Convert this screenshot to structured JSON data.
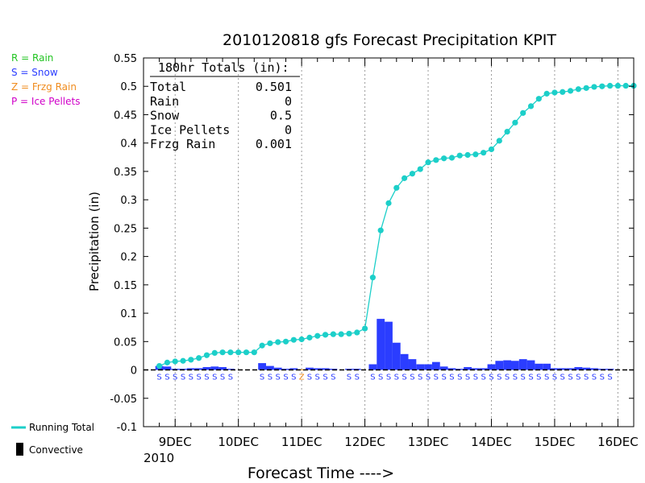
{
  "chart_data": {
    "type": "bar",
    "title": "2010120818 gfs Forecast Precipitation KPIT",
    "xlabel": "Forecast Time ---->",
    "ylabel": "Precipitation (in)",
    "ylim": [
      -0.1,
      0.55
    ],
    "yticks": [
      -0.1,
      -0.05,
      0,
      0.05,
      0.1,
      0.15,
      0.2,
      0.25,
      0.3,
      0.35,
      0.4,
      0.45,
      0.5,
      0.55
    ],
    "ytick_labels": [
      "-0.1",
      "-0.05",
      "0",
      "0.05",
      "0.1",
      "0.15",
      "0.2",
      "0.25",
      "0.3",
      "0.35",
      "0.4",
      "0.45",
      "0.5",
      "0.55"
    ],
    "xlim_hours": [
      -6,
      180
    ],
    "x_units": "hours after 2010-12-08 18Z",
    "x_ticks": [
      {
        "hour": 6,
        "label": "9DEC"
      },
      {
        "hour": 30,
        "label": "10DEC"
      },
      {
        "hour": 54,
        "label": "11DEC"
      },
      {
        "hour": 78,
        "label": "12DEC"
      },
      {
        "hour": 102,
        "label": "13DEC"
      },
      {
        "hour": 126,
        "label": "14DEC"
      },
      {
        "hour": 150,
        "label": "15DEC"
      },
      {
        "hour": 174,
        "label": "16DEC"
      }
    ],
    "x_sublabel": "2010",
    "grid": "vertical dotted at day boundaries",
    "bar_width_hours": 3,
    "interval_precip": [
      {
        "hour": 0,
        "value": 0.007,
        "type": "S",
        "color": "#2b3dff"
      },
      {
        "hour": 3,
        "value": 0.006,
        "type": "S",
        "color": "#2b3dff"
      },
      {
        "hour": 6,
        "value": 0.002,
        "type": "S",
        "color": "#2b3dff"
      },
      {
        "hour": 9,
        "value": 0.002,
        "type": "S",
        "color": "#2b3dff"
      },
      {
        "hour": 12,
        "value": 0.003,
        "type": "S",
        "color": "#2b3dff"
      },
      {
        "hour": 15,
        "value": 0.003,
        "type": "S",
        "color": "#2b3dff"
      },
      {
        "hour": 18,
        "value": 0.005,
        "type": "S",
        "color": "#2b3dff"
      },
      {
        "hour": 21,
        "value": 0.006,
        "type": "S",
        "color": "#2b3dff"
      },
      {
        "hour": 24,
        "value": 0.005,
        "type": "S",
        "color": "#2b3dff"
      },
      {
        "hour": 27,
        "value": 0.002,
        "type": "S",
        "color": "#2b3dff"
      },
      {
        "hour": 30,
        "value": 0.0,
        "type": "",
        "color": "#2b3dff"
      },
      {
        "hour": 33,
        "value": 0.0,
        "type": "",
        "color": "#2b3dff"
      },
      {
        "hour": 36,
        "value": 0.0,
        "type": "",
        "color": "#2b3dff"
      },
      {
        "hour": 39,
        "value": 0.012,
        "type": "S",
        "color": "#2b3dff"
      },
      {
        "hour": 42,
        "value": 0.007,
        "type": "S",
        "color": "#2b3dff"
      },
      {
        "hour": 45,
        "value": 0.004,
        "type": "S",
        "color": "#2b3dff"
      },
      {
        "hour": 48,
        "value": 0.002,
        "type": "S",
        "color": "#2b3dff"
      },
      {
        "hour": 51,
        "value": 0.003,
        "type": "S",
        "color": "#2b3dff"
      },
      {
        "hour": 54,
        "value": 0.001,
        "type": "Z",
        "color": "#f08c1e"
      },
      {
        "hour": 57,
        "value": 0.004,
        "type": "S",
        "color": "#2b3dff"
      },
      {
        "hour": 60,
        "value": 0.003,
        "type": "S",
        "color": "#2b3dff"
      },
      {
        "hour": 63,
        "value": 0.003,
        "type": "S",
        "color": "#2b3dff"
      },
      {
        "hour": 66,
        "value": 0.002,
        "type": "S",
        "color": "#2b3dff"
      },
      {
        "hour": 69,
        "value": 0.0,
        "type": "",
        "color": "#2b3dff"
      },
      {
        "hour": 72,
        "value": 0.002,
        "type": "S",
        "color": "#2b3dff"
      },
      {
        "hour": 75,
        "value": 0.002,
        "type": "S",
        "color": "#2b3dff"
      },
      {
        "hour": 78,
        "value": 0.0,
        "type": "",
        "color": "#2b3dff"
      },
      {
        "hour": 81,
        "value": 0.01,
        "type": "S",
        "color": "#2b3dff"
      },
      {
        "hour": 84,
        "value": 0.09,
        "type": "S",
        "color": "#2b3dff"
      },
      {
        "hour": 87,
        "value": 0.085,
        "type": "S",
        "color": "#2b3dff"
      },
      {
        "hour": 90,
        "value": 0.048,
        "type": "S",
        "color": "#2b3dff"
      },
      {
        "hour": 93,
        "value": 0.028,
        "type": "S",
        "color": "#2b3dff"
      },
      {
        "hour": 96,
        "value": 0.019,
        "type": "S",
        "color": "#2b3dff"
      },
      {
        "hour": 99,
        "value": 0.01,
        "type": "S",
        "color": "#2b3dff"
      },
      {
        "hour": 102,
        "value": 0.01,
        "type": "S",
        "color": "#2b3dff"
      },
      {
        "hour": 105,
        "value": 0.014,
        "type": "S",
        "color": "#2b3dff"
      },
      {
        "hour": 108,
        "value": 0.006,
        "type": "S",
        "color": "#2b3dff"
      },
      {
        "hour": 111,
        "value": 0.003,
        "type": "S",
        "color": "#2b3dff"
      },
      {
        "hour": 114,
        "value": 0.002,
        "type": "S",
        "color": "#2b3dff"
      },
      {
        "hour": 117,
        "value": 0.005,
        "type": "S",
        "color": "#2b3dff"
      },
      {
        "hour": 120,
        "value": 0.003,
        "type": "S",
        "color": "#2b3dff"
      },
      {
        "hour": 123,
        "value": 0.003,
        "type": "S",
        "color": "#2b3dff"
      },
      {
        "hour": 126,
        "value": 0.01,
        "type": "S",
        "color": "#2b3dff"
      },
      {
        "hour": 129,
        "value": 0.016,
        "type": "S",
        "color": "#2b3dff"
      },
      {
        "hour": 132,
        "value": 0.017,
        "type": "S",
        "color": "#2b3dff"
      },
      {
        "hour": 135,
        "value": 0.016,
        "type": "S",
        "color": "#2b3dff"
      },
      {
        "hour": 138,
        "value": 0.019,
        "type": "S",
        "color": "#2b3dff"
      },
      {
        "hour": 141,
        "value": 0.017,
        "type": "S",
        "color": "#2b3dff"
      },
      {
        "hour": 144,
        "value": 0.011,
        "type": "S",
        "color": "#2b3dff"
      },
      {
        "hour": 147,
        "value": 0.011,
        "type": "S",
        "color": "#2b3dff"
      },
      {
        "hour": 150,
        "value": 0.003,
        "type": "S",
        "color": "#2b3dff"
      },
      {
        "hour": 153,
        "value": 0.003,
        "type": "S",
        "color": "#2b3dff"
      },
      {
        "hour": 156,
        "value": 0.003,
        "type": "S",
        "color": "#2b3dff"
      },
      {
        "hour": 159,
        "value": 0.005,
        "type": "S",
        "color": "#2b3dff"
      },
      {
        "hour": 162,
        "value": 0.004,
        "type": "S",
        "color": "#2b3dff"
      },
      {
        "hour": 165,
        "value": 0.003,
        "type": "S",
        "color": "#2b3dff"
      },
      {
        "hour": 168,
        "value": 0.002,
        "type": "S",
        "color": "#2b3dff"
      },
      {
        "hour": 171,
        "value": 0.002,
        "type": "S",
        "color": "#2b3dff"
      }
    ],
    "running_total": {
      "name": "Running Total",
      "color": "#1ccfc9",
      "hours": [
        0,
        3,
        6,
        9,
        12,
        15,
        18,
        21,
        24,
        27,
        30,
        33,
        36,
        39,
        42,
        45,
        48,
        51,
        54,
        57,
        60,
        63,
        66,
        69,
        72,
        75,
        78,
        81,
        84,
        87,
        90,
        93,
        96,
        99,
        102,
        105,
        108,
        111,
        114,
        117,
        120,
        123,
        126,
        129,
        132,
        135,
        138,
        141,
        144,
        147,
        150,
        153,
        156,
        159,
        162,
        165,
        168,
        171,
        174,
        177,
        180
      ],
      "values": [
        0.007,
        0.013,
        0.015,
        0.016,
        0.018,
        0.021,
        0.026,
        0.03,
        0.031,
        0.031,
        0.031,
        0.031,
        0.031,
        0.043,
        0.047,
        0.049,
        0.05,
        0.053,
        0.054,
        0.057,
        0.06,
        0.062,
        0.063,
        0.063,
        0.064,
        0.066,
        0.073,
        0.163,
        0.246,
        0.294,
        0.321,
        0.338,
        0.346,
        0.354,
        0.366,
        0.37,
        0.373,
        0.374,
        0.378,
        0.379,
        0.38,
        0.383,
        0.389,
        0.404,
        0.42,
        0.436,
        0.453,
        0.465,
        0.478,
        0.487,
        0.489,
        0.49,
        0.492,
        0.495,
        0.497,
        0.499,
        0.5,
        0.501,
        0.501,
        0.501,
        0.501
      ]
    },
    "totals_box": {
      "heading": "180hr Totals (in):",
      "rows": [
        {
          "label": "Total",
          "value": "0.501"
        },
        {
          "label": "Rain",
          "value": "0"
        },
        {
          "label": "Snow",
          "value": "0.5"
        },
        {
          "label": "Ice Pellets",
          "value": "0"
        },
        {
          "label": "Frzg Rain",
          "value": "0.001"
        }
      ]
    },
    "type_legend": [
      {
        "text": "R = Rain",
        "color": "#22c422"
      },
      {
        "text": "S = Snow",
        "color": "#2b3dff"
      },
      {
        "text": "Z = Frzg Rain",
        "color": "#f08c1e"
      },
      {
        "text": "P = Ice Pellets",
        "color": "#d000c8"
      }
    ],
    "series_legend": [
      {
        "text": "Running Total",
        "kind": "line",
        "color": "#1ccfc9"
      },
      {
        "text": "Convective",
        "kind": "block",
        "color": "#000000"
      }
    ]
  }
}
